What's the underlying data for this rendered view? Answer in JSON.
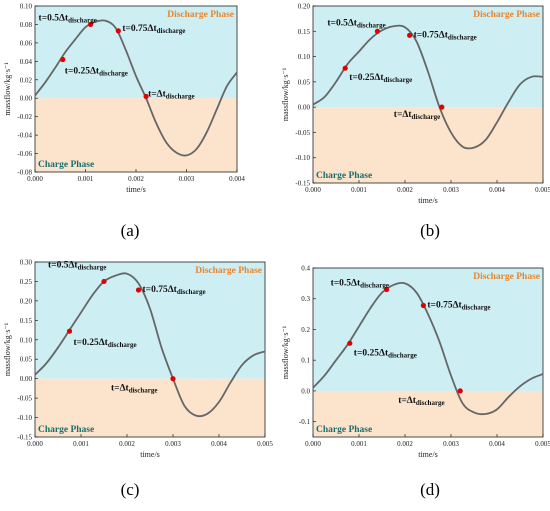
{
  "figure": {
    "panel_labels": [
      "(a)",
      "(b)",
      "(c)",
      "(d)"
    ]
  },
  "colors": {
    "discharge_bg": "#cdeef3",
    "charge_bg": "#fbe3cc",
    "curve": "#666666",
    "marker": "#e00000",
    "discharge_text": "#e8862e",
    "charge_text": "#1b6f6f"
  },
  "chart_data": [
    {
      "type": "line",
      "xlabel": "time/s",
      "ylabel": "massflow/kg·s⁻¹",
      "xlim": [
        0,
        0.004
      ],
      "ylim": [
        -0.08,
        0.1
      ],
      "xticks": [
        "0.000",
        "0.001",
        "0.002",
        "0.003",
        "0.004"
      ],
      "yticks": [
        "-0.08",
        "-0.06",
        "-0.04",
        "-0.02",
        "0.00",
        "0.02",
        "0.04",
        "0.06",
        "0.08",
        "0.10"
      ],
      "phase_labels": {
        "discharge": "Discharge Phase",
        "charge": "Charge Phase"
      },
      "x": [
        0,
        0.0002,
        0.0004,
        0.0006,
        0.0008,
        0.001,
        0.0012,
        0.0014,
        0.0016,
        0.0018,
        0.002,
        0.0022,
        0.0024,
        0.0026,
        0.0028,
        0.003,
        0.0032,
        0.0034,
        0.0036,
        0.0038,
        0.004
      ],
      "y": [
        0.003,
        0.017,
        0.033,
        0.05,
        0.064,
        0.077,
        0.083,
        0.084,
        0.076,
        0.052,
        0.024,
        0.0,
        -0.027,
        -0.048,
        -0.059,
        -0.062,
        -0.055,
        -0.037,
        -0.012,
        0.013,
        0.028
      ],
      "annotations": [
        {
          "x": 0.00055,
          "y": 0.042,
          "main": "t=0.25Δt",
          "sub": "discharge"
        },
        {
          "x": 0.0011,
          "y": 0.08,
          "main": "t=0.5Δt",
          "sub": "discharge"
        },
        {
          "x": 0.00165,
          "y": 0.073,
          "main": "t=0.75Δt",
          "sub": "discharge"
        },
        {
          "x": 0.0022,
          "y": 0.002,
          "main": "t=Δt",
          "sub": "discharge"
        }
      ]
    },
    {
      "type": "line",
      "xlabel": "time/s",
      "ylabel": "massflow/kg·s⁻¹",
      "xlim": [
        0,
        0.005
      ],
      "ylim": [
        -0.15,
        0.2
      ],
      "xticks": [
        "0.000",
        "0.001",
        "0.002",
        "0.003",
        "0.004",
        "0.005"
      ],
      "yticks": [
        "-0.15",
        "-0.10",
        "-0.05",
        "0.00",
        "0.05",
        "0.10",
        "0.15",
        "0.20"
      ],
      "phase_labels": {
        "discharge": "Discharge Phase",
        "charge": "Charge Phase"
      },
      "x": [
        0,
        0.00025,
        0.0005,
        0.00075,
        0.001,
        0.00125,
        0.0015,
        0.00175,
        0.002,
        0.00225,
        0.0025,
        0.00275,
        0.003,
        0.00325,
        0.0035,
        0.00375,
        0.004,
        0.00425,
        0.0045,
        0.00475,
        0.005
      ],
      "y": [
        0.005,
        0.02,
        0.05,
        0.085,
        0.11,
        0.135,
        0.152,
        0.16,
        0.158,
        0.13,
        0.07,
        0.0,
        -0.05,
        -0.078,
        -0.08,
        -0.065,
        -0.03,
        0.01,
        0.045,
        0.06,
        0.06
      ],
      "annotations": [
        {
          "x": 0.0007,
          "y": 0.077,
          "main": "t=0.25Δt",
          "sub": "discharge"
        },
        {
          "x": 0.0014,
          "y": 0.15,
          "main": "t=0.5Δt",
          "sub": "discharge"
        },
        {
          "x": 0.0021,
          "y": 0.142,
          "main": "t=0.75Δt",
          "sub": "discharge"
        },
        {
          "x": 0.0028,
          "y": 0.0,
          "main": "t=Δt",
          "sub": "discharge"
        }
      ]
    },
    {
      "type": "line",
      "xlabel": "time/s",
      "ylabel": "massflow/kg·s⁻¹",
      "xlim": [
        0,
        0.005
      ],
      "ylim": [
        -0.15,
        0.3
      ],
      "xticks": [
        "0.000",
        "0.001",
        "0.002",
        "0.003",
        "0.004",
        "0.005"
      ],
      "yticks": [
        "-0.15",
        "-0.10",
        "-0.05",
        "0.00",
        "0.05",
        "0.10",
        "0.15",
        "0.20",
        "0.25",
        "0.30"
      ],
      "phase_labels": {
        "discharge": "Discharge Phase",
        "charge": "Charge Phase"
      },
      "x": [
        0,
        0.00025,
        0.0005,
        0.00075,
        0.001,
        0.00125,
        0.0015,
        0.00175,
        0.002,
        0.00225,
        0.0025,
        0.00275,
        0.003,
        0.00325,
        0.0035,
        0.00375,
        0.004,
        0.00425,
        0.0045,
        0.00475,
        0.005
      ],
      "y": [
        0.01,
        0.04,
        0.08,
        0.125,
        0.17,
        0.215,
        0.25,
        0.265,
        0.27,
        0.245,
        0.18,
        0.08,
        0.0,
        -0.07,
        -0.095,
        -0.09,
        -0.06,
        -0.01,
        0.035,
        0.06,
        0.07
      ],
      "annotations": [
        {
          "x": 0.00075,
          "y": 0.122,
          "main": "t=0.25Δt",
          "sub": "discharge"
        },
        {
          "x": 0.0015,
          "y": 0.25,
          "main": "t=0.5Δt",
          "sub": "discharge"
        },
        {
          "x": 0.00225,
          "y": 0.228,
          "main": "t=0.75Δt",
          "sub": "discharge"
        },
        {
          "x": 0.003,
          "y": 0.0,
          "main": "t=Δt",
          "sub": "discharge"
        }
      ]
    },
    {
      "type": "line",
      "xlabel": "time/s",
      "ylabel": "massflow/kg·s⁻¹",
      "xlim": [
        0,
        0.005
      ],
      "ylim": [
        -0.15,
        0.4
      ],
      "xticks": [
        "0.000",
        "0.001",
        "0.002",
        "0.003",
        "0.004",
        "0.005"
      ],
      "yticks": [
        "-0.1",
        "0.0",
        "0.1",
        "0.2",
        "0.3",
        "0.4"
      ],
      "phase_labels": {
        "discharge": "Discharge Phase",
        "charge": "Charge Phase"
      },
      "x": [
        0,
        0.00025,
        0.0005,
        0.00075,
        0.001,
        0.00125,
        0.0015,
        0.00175,
        0.002,
        0.00225,
        0.0025,
        0.00275,
        0.003,
        0.00325,
        0.0035,
        0.00375,
        0.004,
        0.00425,
        0.0045,
        0.00475,
        0.005
      ],
      "y": [
        0.01,
        0.05,
        0.1,
        0.15,
        0.21,
        0.27,
        0.32,
        0.345,
        0.35,
        0.32,
        0.25,
        0.16,
        0.05,
        -0.04,
        -0.07,
        -0.075,
        -0.06,
        -0.02,
        0.015,
        0.04,
        0.055
      ],
      "annotations": [
        {
          "x": 0.0008,
          "y": 0.155,
          "main": "t=0.25Δt",
          "sub": "discharge"
        },
        {
          "x": 0.0016,
          "y": 0.33,
          "main": "t=0.5Δt",
          "sub": "discharge"
        },
        {
          "x": 0.0024,
          "y": 0.278,
          "main": "t=0.75Δt",
          "sub": "discharge"
        },
        {
          "x": 0.0032,
          "y": 0.0,
          "main": "t=Δt",
          "sub": "discharge"
        }
      ]
    }
  ]
}
